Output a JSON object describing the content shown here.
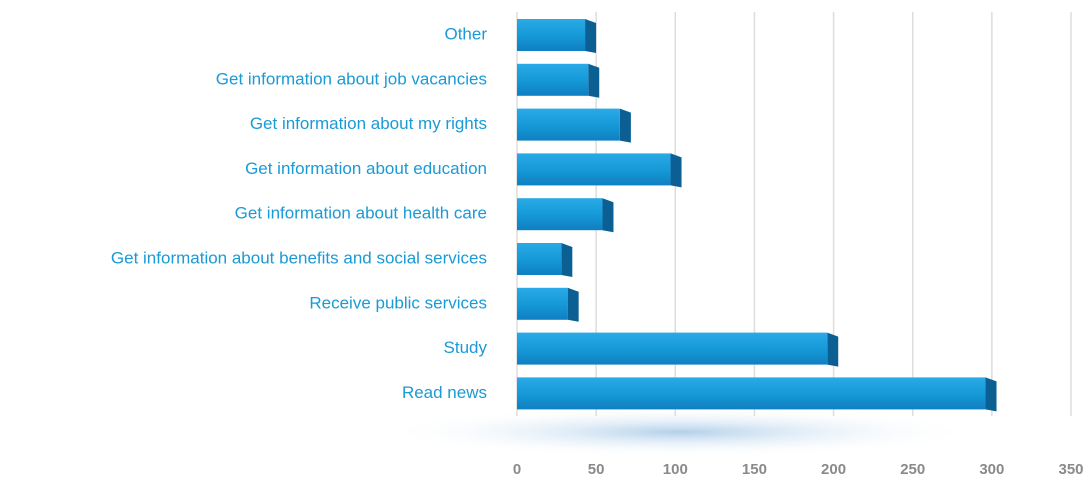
{
  "chart_data": {
    "type": "bar",
    "orientation": "horizontal",
    "categories": [
      "Other",
      "Get information about job vacancies",
      "Get information about my rights",
      "Get information about education",
      "Get information about health care",
      "Get information about benefits and social services",
      "Receive public services",
      "Study",
      "Read news"
    ],
    "values": [
      43,
      45,
      65,
      97,
      54,
      28,
      32,
      196,
      296
    ],
    "color": "#1a9ad6",
    "xlim": [
      0,
      350
    ],
    "xticks": [
      0,
      50,
      100,
      150,
      200,
      250,
      300,
      350
    ],
    "grid": true
  }
}
